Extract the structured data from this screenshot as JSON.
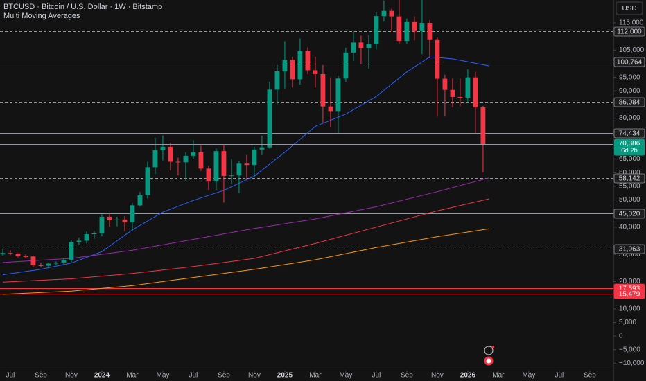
{
  "header": {
    "symbol_title": "BTCUSD · Bitcoin / U.S. Dollar · 1W · Bitstamp",
    "indicator": "Multi Moving Averages",
    "currency_button": "USD"
  },
  "chart_data": {
    "type": "candlestick",
    "x": [
      -0.5,
      0,
      0.5,
      1,
      1.5,
      2,
      2.5,
      3,
      3.5,
      4,
      4.5,
      5,
      5.5,
      6,
      6.5,
      7,
      7.5,
      8,
      8.5,
      9,
      9.5,
      10,
      10.5,
      11,
      11.5,
      12,
      12.5,
      13,
      13.5,
      14,
      14.5,
      15,
      15.5,
      16,
      16.5,
      17,
      17.5,
      18,
      18.5,
      19,
      19.5,
      20,
      20.5,
      21,
      21.5,
      22,
      22.5,
      23,
      23.5,
      24,
      24.5,
      25,
      25.5,
      26,
      26.5,
      27,
      27.5,
      28,
      28.5,
      29,
      29.5,
      30,
      30.5,
      31
    ],
    "open": [
      30000,
      30500,
      30300,
      29300,
      29200,
      26000,
      25800,
      26600,
      27000,
      27900,
      34500,
      35000,
      37400,
      37700,
      43800,
      42500,
      42800,
      41800,
      48000,
      51700,
      62000,
      68300,
      69500,
      64000,
      63800,
      66200,
      67500,
      61500,
      56700,
      67900,
      58800,
      59000,
      63300,
      62800,
      68500,
      69300,
      90500,
      97200,
      101400,
      94300,
      104600,
      97600,
      96200,
      84300,
      82600,
      94600,
      104100,
      107800,
      105700,
      107200,
      117500,
      119400,
      117400,
      108400,
      115300,
      112000,
      115000,
      108700,
      94500,
      90400,
      87800,
      87500,
      95000,
      84000
    ],
    "high": [
      31800,
      31500,
      30400,
      30000,
      29400,
      26900,
      27000,
      27400,
      28600,
      35200,
      36200,
      38400,
      38500,
      44700,
      45000,
      43800,
      44000,
      48900,
      52900,
      64000,
      72800,
      73700,
      71000,
      65500,
      67500,
      71900,
      69900,
      62500,
      68900,
      70000,
      65000,
      64300,
      66500,
      69500,
      73600,
      93400,
      99600,
      108300,
      102500,
      109300,
      106000,
      102500,
      99500,
      95000,
      95700,
      105800,
      111900,
      110300,
      110500,
      118800,
      123200,
      120200,
      124400,
      116600,
      117400,
      126000,
      116000,
      109700,
      96000,
      94600,
      94600,
      97900,
      97000,
      84500
    ],
    "low": [
      29500,
      29700,
      28900,
      28700,
      25200,
      25300,
      25000,
      26000,
      26300,
      27000,
      33500,
      34100,
      35700,
      36700,
      40200,
      40300,
      38500,
      38500,
      47500,
      50500,
      59500,
      64500,
      60800,
      59000,
      56800,
      65000,
      60600,
      53500,
      53500,
      49000,
      56000,
      52500,
      57500,
      58900,
      66500,
      68800,
      85200,
      90900,
      91300,
      92300,
      96200,
      91200,
      78200,
      76600,
      74500,
      93300,
      101000,
      100000,
      98200,
      105200,
      115500,
      112000,
      107400,
      107300,
      108600,
      103500,
      102000,
      80600,
      80600,
      84000,
      84400,
      86100,
      74500,
      60000
    ],
    "close": [
      30500,
      30300,
      29300,
      29200,
      26000,
      25800,
      26600,
      27000,
      27900,
      34500,
      35000,
      37400,
      37700,
      43800,
      42500,
      42800,
      41800,
      48000,
      51700,
      62000,
      68300,
      69500,
      64000,
      63800,
      66200,
      67500,
      61500,
      56700,
      67900,
      58800,
      59000,
      63300,
      62800,
      68500,
      69300,
      90500,
      97200,
      101400,
      94300,
      104600,
      97600,
      96200,
      84300,
      82600,
      94600,
      104100,
      107800,
      105700,
      107200,
      117500,
      119400,
      117400,
      108400,
      115300,
      112000,
      115000,
      108700,
      94500,
      90400,
      87800,
      87500,
      95000,
      84000,
      70400
    ],
    "up_color": "#089981",
    "down_color": "#f23645",
    "xlim": [
      -0.68,
      39.55
    ],
    "ylim": [
      -12700,
      123400
    ],
    "xticks": [
      {
        "value": 0,
        "label": "Jul"
      },
      {
        "value": 2,
        "label": "Sep"
      },
      {
        "value": 4,
        "label": "Nov"
      },
      {
        "value": 6,
        "label": "2024"
      },
      {
        "value": 8,
        "label": "Mar"
      },
      {
        "value": 10,
        "label": "May"
      },
      {
        "value": 12,
        "label": "Jul"
      },
      {
        "value": 14,
        "label": "Sep"
      },
      {
        "value": 16,
        "label": "Nov"
      },
      {
        "value": 18,
        "label": "2025"
      },
      {
        "value": 20,
        "label": "Mar"
      },
      {
        "value": 22,
        "label": "May"
      },
      {
        "value": 24,
        "label": "Jul"
      },
      {
        "value": 26,
        "label": "Sep"
      },
      {
        "value": 28,
        "label": "Nov"
      },
      {
        "value": 30,
        "label": "2026"
      },
      {
        "value": 32,
        "label": "Mar"
      },
      {
        "value": 34,
        "label": "May"
      },
      {
        "value": 36,
        "label": "Jul"
      },
      {
        "value": 38,
        "label": "Sep"
      }
    ],
    "yticks": [
      {
        "value": 115000,
        "label": "115,000"
      },
      {
        "value": 105000,
        "label": "105,000"
      },
      {
        "value": 95000,
        "label": "95,000"
      },
      {
        "value": 90000,
        "label": "90,000"
      },
      {
        "value": 80000,
        "label": "80,000"
      },
      {
        "value": 65000,
        "label": "65,000"
      },
      {
        "value": 60000,
        "label": "60,000"
      },
      {
        "value": 55000,
        "label": "55,000"
      },
      {
        "value": 50000,
        "label": "50,000"
      },
      {
        "value": 40000,
        "label": "40,000"
      },
      {
        "value": 30000,
        "label": "30,000"
      },
      {
        "value": 20000,
        "label": "20,000"
      },
      {
        "value": 10000,
        "label": "10,000"
      },
      {
        "value": 5000,
        "label": "5,000"
      },
      0,
      {
        "value": -5000,
        "label": "−5,000"
      },
      {
        "value": -10000,
        "label": "−10,000"
      }
    ],
    "moving_averages": [
      {
        "color": "#2962ff",
        "x": [
          -0.5,
          2,
          4,
          6,
          8,
          10,
          12,
          14,
          16,
          18,
          20,
          22,
          24,
          26,
          27.5,
          29,
          31.4
        ],
        "values": [
          22500,
          24500,
          26800,
          31000,
          39000,
          45500,
          49800,
          53500,
          58700,
          67500,
          77000,
          81500,
          88000,
          97000,
          102500,
          101800,
          99200
        ]
      },
      {
        "color": "#9c27b0",
        "x": [
          -0.5,
          4,
          8,
          12,
          16,
          20,
          24,
          28,
          31.4
        ],
        "values": [
          27000,
          28500,
          31500,
          35500,
          39500,
          43000,
          47500,
          53000,
          58100
        ]
      },
      {
        "color": "#f23645",
        "x": [
          -0.5,
          4,
          8,
          12,
          16,
          20,
          24,
          28,
          31.4
        ],
        "values": [
          19800,
          21000,
          23000,
          25500,
          28500,
          34000,
          40000,
          46000,
          50400
        ]
      },
      {
        "color": "#ff9800",
        "x": [
          -0.5,
          4,
          8,
          12,
          16,
          20,
          24,
          28,
          31.4
        ],
        "values": [
          15300,
          16500,
          18500,
          21500,
          24500,
          28000,
          32500,
          36500,
          39400
        ]
      }
    ],
    "levels": [
      {
        "value": 112000,
        "label": "112,000",
        "color": "#9598a1",
        "style": "dashed"
      },
      {
        "value": 100764,
        "label": "100,764",
        "color": "#9598a1",
        "style": "solid"
      },
      {
        "value": 86084,
        "label": "86,084",
        "color": "#9598a1",
        "style": "dashed"
      },
      {
        "value": 74434,
        "label": "74,434",
        "color": "#9598a1",
        "style": "solid"
      },
      {
        "value": 58142,
        "label": "58,142",
        "color": "#9598a1",
        "style": "dashed"
      },
      {
        "value": 45020,
        "label": "45,020",
        "color": "#9598a1",
        "style": "solid"
      },
      {
        "value": 31963,
        "label": "31,963",
        "color": "#9598a1",
        "style": "dashed"
      },
      {
        "value": 17593,
        "label": "17,593",
        "color": "#f23645",
        "style": "solid"
      },
      {
        "value": 15479,
        "label": "15,479",
        "color": "#f23645",
        "style": "solid"
      }
    ],
    "last_price": {
      "value": 70386,
      "label": "70,386",
      "countdown": "6d 2h",
      "color": "#089981"
    }
  }
}
